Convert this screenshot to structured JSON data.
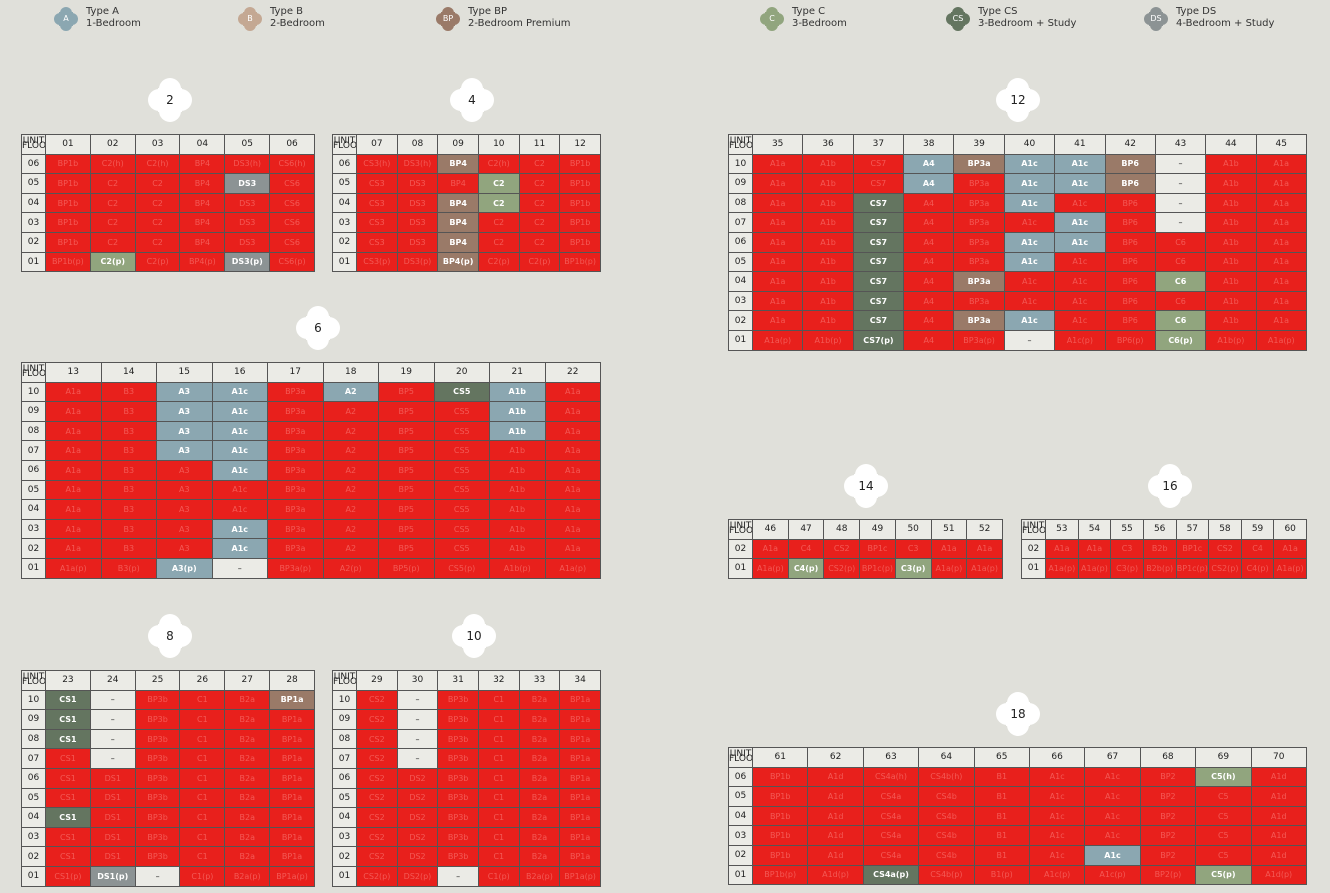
{
  "legend": [
    {
      "badge": "A",
      "title": "Type A",
      "subtitle": "1-Bedroom",
      "color": "#8ba7b1"
    },
    {
      "badge": "B",
      "title": "Type B",
      "subtitle": "2-Bedroom",
      "color": "#c4a893"
    },
    {
      "badge": "BP",
      "title": "Type BP",
      "subtitle": "2-Bedroom Premium",
      "color": "#9a7a68"
    },
    {
      "badge": "C",
      "title": "Type C",
      "subtitle": "3-Bedroom",
      "color": "#91a57e"
    },
    {
      "badge": "CS",
      "title": "Type CS",
      "subtitle": "3-Bedroom + Study",
      "color": "#647560"
    },
    {
      "badge": "DS",
      "title": "Type DS",
      "subtitle": "4-Bedroom + Study",
      "color": "#8c9394"
    }
  ],
  "status_colors": {
    "sold": "#e8201c",
    "not_available": "#ebebe6"
  },
  "corner_label": {
    "unit": "UNIT",
    "floor": "FLOOR"
  },
  "blocks": [
    {
      "number": "2"
    },
    {
      "number": "4"
    },
    {
      "number": "6"
    },
    {
      "number": "8"
    },
    {
      "number": "10"
    },
    {
      "number": "12"
    },
    {
      "number": "14"
    },
    {
      "number": "16"
    },
    {
      "number": "18"
    }
  ],
  "tables": [
    {
      "id": "t1",
      "floors": [
        "06",
        "05",
        "04",
        "03",
        "02",
        "01"
      ],
      "units": [
        "01",
        "02",
        "03",
        "04",
        "05",
        "06"
      ],
      "rows": [
        [
          "BP1b|s",
          "C2(h)|s",
          "C2(h)|s",
          "BP4|s",
          "DS3(h)|s",
          "CS6(h)|s"
        ],
        [
          "BP1b|s",
          "C2|s",
          "C2|s",
          "BP4|s",
          "DS3|DS",
          "CS6|s"
        ],
        [
          "BP1b|s",
          "C2|s",
          "C2|s",
          "BP4|s",
          "DS3|s",
          "CS6|s"
        ],
        [
          "BP1b|s",
          "C2|s",
          "C2|s",
          "BP4|s",
          "DS3|s",
          "CS6|s"
        ],
        [
          "BP1b|s",
          "C2|s",
          "C2|s",
          "BP4|s",
          "DS3|s",
          "CS6|s"
        ],
        [
          "BP1b(p)|s",
          "C2(p)|C",
          "C2(p)|s",
          "BP4(p)|s",
          "DS3(p)|DS",
          "CS6(p)|s"
        ]
      ]
    },
    {
      "id": "t2",
      "floors": [
        "06",
        "05",
        "04",
        "03",
        "02",
        "01"
      ],
      "units": [
        "07",
        "08",
        "09",
        "10",
        "11",
        "12"
      ],
      "rows": [
        [
          "CS3(h)|s",
          "DS3(h)|s",
          "BP4|BP",
          "C2(h)|s",
          "C2|s",
          "BP1b|s"
        ],
        [
          "CS3|s",
          "DS3|s",
          "BP4|s",
          "C2|C",
          "C2|s",
          "BP1b|s"
        ],
        [
          "CS3|s",
          "DS3|s",
          "BP4|BP",
          "C2|C",
          "C2|s",
          "BP1b|s"
        ],
        [
          "CS3|s",
          "DS3|s",
          "BP4|BP",
          "C2|s",
          "C2|s",
          "BP1b|s"
        ],
        [
          "CS3|s",
          "DS3|s",
          "BP4|BP",
          "C2|s",
          "C2|s",
          "BP1b|s"
        ],
        [
          "CS3(p)|s",
          "DS3(p)|s",
          "BP4(p)|BP",
          "C2(p)|s",
          "C2(p)|s",
          "BP1b(p)|s"
        ]
      ]
    },
    {
      "id": "t3",
      "floors": [
        "10",
        "09",
        "08",
        "07",
        "06",
        "05",
        "04",
        "03",
        "02",
        "01"
      ],
      "units": [
        "13",
        "14",
        "15",
        "16",
        "17",
        "18",
        "19",
        "20",
        "21",
        "22"
      ],
      "rows": [
        [
          "A1a|s",
          "B3|s",
          "A3|A",
          "A1c|A",
          "BP3a|s",
          "A2|A",
          "BP5|s",
          "CS5|CS",
          "A1b|A",
          "A1a|s"
        ],
        [
          "A1a|s",
          "B3|s",
          "A3|A",
          "A1c|A",
          "BP3a|s",
          "A2|s",
          "BP5|s",
          "CS5|s",
          "A1b|A",
          "A1a|s"
        ],
        [
          "A1a|s",
          "B3|s",
          "A3|A",
          "A1c|A",
          "BP3a|s",
          "A2|s",
          "BP5|s",
          "CS5|s",
          "A1b|A",
          "A1a|s"
        ],
        [
          "A1a|s",
          "B3|s",
          "A3|A",
          "A1c|A",
          "BP3a|s",
          "A2|s",
          "BP5|s",
          "CS5|s",
          "A1b|s",
          "A1a|s"
        ],
        [
          "A1a|s",
          "B3|s",
          "A3|s",
          "A1c|A",
          "BP3a|s",
          "A2|s",
          "BP5|s",
          "CS5|s",
          "A1b|s",
          "A1a|s"
        ],
        [
          "A1a|s",
          "B3|s",
          "A3|s",
          "A1c|s",
          "BP3a|s",
          "A2|s",
          "BP5|s",
          "CS5|s",
          "A1b|s",
          "A1a|s"
        ],
        [
          "A1a|s",
          "B3|s",
          "A3|s",
          "A1c|s",
          "BP3a|s",
          "A2|s",
          "BP5|s",
          "CS5|s",
          "A1b|s",
          "A1a|s"
        ],
        [
          "A1a|s",
          "B3|s",
          "A3|s",
          "A1c|A",
          "BP3a|s",
          "A2|s",
          "BP5|s",
          "CS5|s",
          "A1b|s",
          "A1a|s"
        ],
        [
          "A1a|s",
          "B3|s",
          "A3|s",
          "A1c|A",
          "BP3a|s",
          "A2|s",
          "BP5|s",
          "CS5|s",
          "A1b|s",
          "A1a|s"
        ],
        [
          "A1a(p)|s",
          "B3(p)|s",
          "A3(p)|A",
          "–|n",
          "BP3a(p)|s",
          "A2(p)|s",
          "BP5(p)|s",
          "CS5(p)|s",
          "A1b(p)|s",
          "A1a(p)|s"
        ]
      ]
    },
    {
      "id": "t4",
      "floors": [
        "10",
        "09",
        "08",
        "07",
        "06",
        "05",
        "04",
        "03",
        "02",
        "01"
      ],
      "units": [
        "23",
        "24",
        "25",
        "26",
        "27",
        "28"
      ],
      "rows": [
        [
          "CS1|CS",
          "–|n",
          "BP3b|s",
          "C1|s",
          "B2a|s",
          "BP1a|BP"
        ],
        [
          "CS1|CS",
          "–|n",
          "BP3b|s",
          "C1|s",
          "B2a|s",
          "BP1a|s"
        ],
        [
          "CS1|CS",
          "–|n",
          "BP3b|s",
          "C1|s",
          "B2a|s",
          "BP1a|s"
        ],
        [
          "CS1|s",
          "–|n",
          "BP3b|s",
          "C1|s",
          "B2a|s",
          "BP1a|s"
        ],
        [
          "CS1|s",
          "DS1|s",
          "BP3b|s",
          "C1|s",
          "B2a|s",
          "BP1a|s"
        ],
        [
          "CS1|s",
          "DS1|s",
          "BP3b|s",
          "C1|s",
          "B2a|s",
          "BP1a|s"
        ],
        [
          "CS1|CS",
          "DS1|s",
          "BP3b|s",
          "C1|s",
          "B2a|s",
          "BP1a|s"
        ],
        [
          "CS1|s",
          "DS1|s",
          "BP3b|s",
          "C1|s",
          "B2a|s",
          "BP1a|s"
        ],
        [
          "CS1|s",
          "DS1|s",
          "BP3b|s",
          "C1|s",
          "B2a|s",
          "BP1a|s"
        ],
        [
          "CS1(p)|s",
          "DS1(p)|DS",
          "–|n",
          "C1(p)|s",
          "B2a(p)|s",
          "BP1a(p)|s"
        ]
      ]
    },
    {
      "id": "t5",
      "floors": [
        "10",
        "09",
        "08",
        "07",
        "06",
        "05",
        "04",
        "03",
        "02",
        "01"
      ],
      "units": [
        "29",
        "30",
        "31",
        "32",
        "33",
        "34"
      ],
      "rows": [
        [
          "CS2|s",
          "–|n",
          "BP3b|s",
          "C1|s",
          "B2a|s",
          "BP1a|s"
        ],
        [
          "CS2|s",
          "–|n",
          "BP3b|s",
          "C1|s",
          "B2a|s",
          "BP1a|s"
        ],
        [
          "CS2|s",
          "–|n",
          "BP3b|s",
          "C1|s",
          "B2a|s",
          "BP1a|s"
        ],
        [
          "CS2|s",
          "–|n",
          "BP3b|s",
          "C1|s",
          "B2a|s",
          "BP1a|s"
        ],
        [
          "CS2|s",
          "DS2|s",
          "BP3b|s",
          "C1|s",
          "B2a|s",
          "BP1a|s"
        ],
        [
          "CS2|s",
          "DS2|s",
          "BP3b|s",
          "C1|s",
          "B2a|s",
          "BP1a|s"
        ],
        [
          "CS2|s",
          "DS2|s",
          "BP3b|s",
          "C1|s",
          "B2a|s",
          "BP1a|s"
        ],
        [
          "CS2|s",
          "DS2|s",
          "BP3b|s",
          "C1|s",
          "B2a|s",
          "BP1a|s"
        ],
        [
          "CS2|s",
          "DS2|s",
          "BP3b|s",
          "C1|s",
          "B2a|s",
          "BP1a|s"
        ],
        [
          "CS2(p)|s",
          "DS2(p)|s",
          "–|n",
          "C1(p)|s",
          "B2a(p)|s",
          "BP1a(p)|s"
        ]
      ]
    },
    {
      "id": "t6",
      "floors": [
        "10",
        "09",
        "08",
        "07",
        "06",
        "05",
        "04",
        "03",
        "02",
        "01"
      ],
      "units": [
        "35",
        "36",
        "37",
        "38",
        "39",
        "40",
        "41",
        "42",
        "43",
        "44",
        "45"
      ],
      "rows": [
        [
          "A1a|s",
          "A1b|s",
          "CS7|s",
          "A4|A",
          "BP3a|BP",
          "A1c|A",
          "A1c|A",
          "BP6|BP",
          "–|n",
          "A1b|s",
          "A1a|s"
        ],
        [
          "A1a|s",
          "A1b|s",
          "CS7|s",
          "A4|A",
          "BP3a|s",
          "A1c|A",
          "A1c|A",
          "BP6|BP",
          "–|n",
          "A1b|s",
          "A1a|s"
        ],
        [
          "A1a|s",
          "A1b|s",
          "CS7|CS",
          "A4|s",
          "BP3a|s",
          "A1c|A",
          "A1c|s",
          "BP6|s",
          "–|n",
          "A1b|s",
          "A1a|s"
        ],
        [
          "A1a|s",
          "A1b|s",
          "CS7|CS",
          "A4|s",
          "BP3a|s",
          "A1c|s",
          "A1c|A",
          "BP6|s",
          "–|n",
          "A1b|s",
          "A1a|s"
        ],
        [
          "A1a|s",
          "A1b|s",
          "CS7|CS",
          "A4|s",
          "BP3a|s",
          "A1c|A",
          "A1c|A",
          "BP6|s",
          "C6|s",
          "A1b|s",
          "A1a|s"
        ],
        [
          "A1a|s",
          "A1b|s",
          "CS7|CS",
          "A4|s",
          "BP3a|s",
          "A1c|A",
          "A1c|s",
          "BP6|s",
          "C6|s",
          "A1b|s",
          "A1a|s"
        ],
        [
          "A1a|s",
          "A1b|s",
          "CS7|CS",
          "A4|s",
          "BP3a|BP",
          "A1c|s",
          "A1c|s",
          "BP6|s",
          "C6|C",
          "A1b|s",
          "A1a|s"
        ],
        [
          "A1a|s",
          "A1b|s",
          "CS7|CS",
          "A4|s",
          "BP3a|s",
          "A1c|s",
          "A1c|s",
          "BP6|s",
          "C6|s",
          "A1b|s",
          "A1a|s"
        ],
        [
          "A1a|s",
          "A1b|s",
          "CS7|CS",
          "A4|s",
          "BP3a|BP",
          "A1c|A",
          "A1c|s",
          "BP6|s",
          "C6|C",
          "A1b|s",
          "A1a|s"
        ],
        [
          "A1a(p)|s",
          "A1b(p)|s",
          "CS7(p)|CS",
          "A4|s",
          "BP3a(p)|s",
          "–|n",
          "A1c(p)|s",
          "BP6(p)|s",
          "C6(p)|C",
          "A1b(p)|s",
          "A1a(p)|s"
        ]
      ]
    },
    {
      "id": "t7",
      "floors": [
        "02",
        "01"
      ],
      "units": [
        "46",
        "47",
        "48",
        "49",
        "50",
        "51",
        "52"
      ],
      "rows": [
        [
          "A1a|s",
          "C4|s",
          "CS2|s",
          "BP1c|s",
          "C3|s",
          "A1a|s",
          "A1a|s"
        ],
        [
          "A1a(p)|s",
          "C4(p)|C",
          "CS2(p)|s",
          "BP1c(p)|s",
          "C3(p)|C",
          "A1a(p)|s",
          "A1a(p)|s"
        ]
      ]
    },
    {
      "id": "t8",
      "floors": [
        "02",
        "01"
      ],
      "units": [
        "53",
        "54",
        "55",
        "56",
        "57",
        "58",
        "59",
        "60"
      ],
      "rows": [
        [
          "A1a|s",
          "A1a|s",
          "C3|s",
          "B2b|s",
          "BP1c|s",
          "CS2|s",
          "C4|s",
          "A1a|s"
        ],
        [
          "A1a(p)|s",
          "A1a(p)|s",
          "C3(p)|s",
          "B2b(p)|s",
          "BP1c(p)|s",
          "CS2(p)|s",
          "C4(p)|s",
          "A1a(p)|s"
        ]
      ]
    },
    {
      "id": "t9",
      "floors": [
        "06",
        "05",
        "04",
        "03",
        "02",
        "01"
      ],
      "units": [
        "61",
        "62",
        "63",
        "64",
        "65",
        "66",
        "67",
        "68",
        "69",
        "70"
      ],
      "rows": [
        [
          "BP1b|s",
          "A1d|s",
          "CS4a(h)|s",
          "CS4b(h)|s",
          "B1|s",
          "A1c|s",
          "A1c|s",
          "BP2|s",
          "C5(h)|C",
          "A1d|s"
        ],
        [
          "BP1b|s",
          "A1d|s",
          "CS4a|s",
          "CS4b|s",
          "B1|s",
          "A1c|s",
          "A1c|s",
          "BP2|s",
          "C5|s",
          "A1d|s"
        ],
        [
          "BP1b|s",
          "A1d|s",
          "CS4a|s",
          "CS4b|s",
          "B1|s",
          "A1c|s",
          "A1c|s",
          "BP2|s",
          "C5|s",
          "A1d|s"
        ],
        [
          "BP1b|s",
          "A1d|s",
          "CS4a|s",
          "CS4b|s",
          "B1|s",
          "A1c|s",
          "A1c|s",
          "BP2|s",
          "C5|s",
          "A1d|s"
        ],
        [
          "BP1b|s",
          "A1d|s",
          "CS4a|s",
          "CS4b|s",
          "B1|s",
          "A1c|s",
          "A1c|A",
          "BP2|s",
          "C5|s",
          "A1d|s"
        ],
        [
          "BP1b(p)|s",
          "A1d(p)|s",
          "CS4a(p)|CS",
          "CS4b(p)|s",
          "B1(p)|s",
          "A1c(p)|s",
          "A1c(p)|s",
          "BP2(p)|s",
          "C5(p)|C",
          "A1d(p)|s"
        ]
      ]
    }
  ]
}
